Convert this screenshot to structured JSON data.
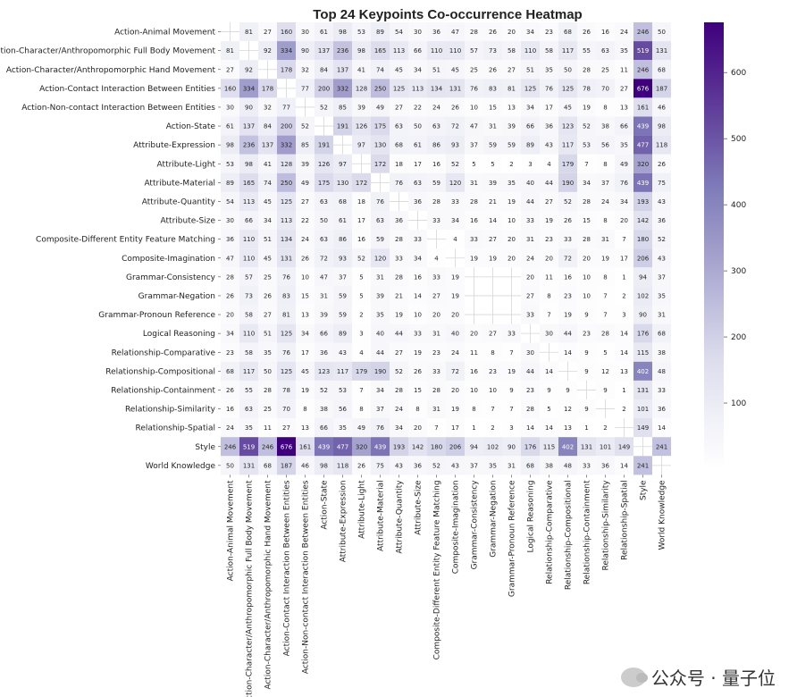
{
  "chart_data": {
    "type": "heatmap",
    "title": "Top 24 Keypoints Co-occurrence Heatmap",
    "labels": [
      "Action-Animal Movement",
      "Action-Character/Anthropomorphic Full Body Movement",
      "Action-Character/Anthropomorphic Hand Movement",
      "Action-Contact Interaction Between Entities",
      "Action-Non-contact Interaction Between Entities",
      "Action-State",
      "Attribute-Expression",
      "Attribute-Light",
      "Attribute-Material",
      "Attribute-Quantity",
      "Attribute-Size",
      "Composite-Different Entity Feature Matching",
      "Composite-Imagination",
      "Grammar-Consistency",
      "Grammar-Negation",
      "Grammar-Pronoun Reference",
      "Logical Reasoning",
      "Relationship-Comparative",
      "Relationship-Compositional",
      "Relationship-Containment",
      "Relationship-Similarity",
      "Relationship-Spatial",
      "Style",
      "World Knowledge"
    ],
    "matrix": [
      [
        null,
        81,
        27,
        160,
        30,
        61,
        98,
        53,
        89,
        54,
        30,
        36,
        47,
        28,
        26,
        20,
        34,
        23,
        68,
        26,
        16,
        24,
        246,
        50
      ],
      [
        81,
        null,
        92,
        334,
        90,
        137,
        236,
        98,
        165,
        113,
        66,
        110,
        110,
        57,
        73,
        58,
        110,
        58,
        117,
        55,
        63,
        35,
        519,
        131
      ],
      [
        27,
        92,
        null,
        178,
        32,
        84,
        137,
        41,
        74,
        45,
        34,
        51,
        45,
        25,
        26,
        27,
        51,
        35,
        50,
        28,
        25,
        11,
        246,
        68
      ],
      [
        160,
        334,
        178,
        null,
        77,
        200,
        332,
        128,
        250,
        125,
        113,
        134,
        131,
        76,
        83,
        81,
        125,
        76,
        125,
        78,
        70,
        27,
        676,
        187
      ],
      [
        30,
        90,
        32,
        77,
        null,
        52,
        85,
        39,
        49,
        27,
        22,
        24,
        26,
        10,
        15,
        13,
        34,
        17,
        45,
        19,
        8,
        13,
        161,
        46
      ],
      [
        61,
        137,
        84,
        200,
        52,
        null,
        191,
        126,
        175,
        63,
        50,
        63,
        72,
        47,
        31,
        39,
        66,
        36,
        123,
        52,
        38,
        66,
        439,
        98
      ],
      [
        98,
        236,
        137,
        332,
        85,
        191,
        null,
        97,
        130,
        68,
        61,
        86,
        93,
        37,
        59,
        59,
        89,
        43,
        117,
        53,
        56,
        35,
        477,
        118
      ],
      [
        53,
        98,
        41,
        128,
        39,
        126,
        97,
        null,
        172,
        18,
        17,
        16,
        52,
        5,
        5,
        2,
        3,
        4,
        179,
        7,
        8,
        49,
        320,
        26
      ],
      [
        89,
        165,
        74,
        250,
        49,
        175,
        130,
        172,
        null,
        76,
        63,
        59,
        120,
        31,
        39,
        35,
        40,
        44,
        190,
        34,
        37,
        76,
        439,
        75
      ],
      [
        54,
        113,
        45,
        125,
        27,
        63,
        68,
        18,
        76,
        null,
        36,
        28,
        33,
        28,
        21,
        19,
        44,
        27,
        52,
        28,
        24,
        34,
        193,
        43
      ],
      [
        30,
        66,
        34,
        113,
        22,
        50,
        61,
        17,
        63,
        36,
        null,
        33,
        34,
        16,
        14,
        10,
        33,
        19,
        26,
        15,
        8,
        20,
        142,
        36
      ],
      [
        36,
        110,
        51,
        134,
        24,
        63,
        86,
        16,
        59,
        28,
        33,
        null,
        4,
        33,
        27,
        20,
        31,
        23,
        33,
        28,
        31,
        7,
        180,
        52
      ],
      [
        47,
        110,
        45,
        131,
        26,
        72,
        93,
        52,
        120,
        33,
        34,
        4,
        null,
        19,
        19,
        20,
        24,
        20,
        72,
        20,
        19,
        17,
        206,
        43
      ],
      [
        28,
        57,
        25,
        76,
        10,
        47,
        37,
        5,
        31,
        28,
        16,
        33,
        19,
        null,
        null,
        null,
        20,
        11,
        16,
        10,
        8,
        1,
        94,
        37
      ],
      [
        26,
        73,
        26,
        83,
        15,
        31,
        59,
        5,
        39,
        21,
        14,
        27,
        19,
        null,
        null,
        null,
        27,
        8,
        23,
        10,
        7,
        2,
        102,
        35
      ],
      [
        20,
        58,
        27,
        81,
        13,
        39,
        59,
        2,
        35,
        19,
        10,
        20,
        20,
        null,
        null,
        null,
        33,
        7,
        19,
        9,
        7,
        3,
        90,
        31
      ],
      [
        34,
        110,
        51,
        125,
        34,
        66,
        89,
        3,
        40,
        44,
        33,
        31,
        40,
        20,
        27,
        33,
        null,
        30,
        44,
        23,
        28,
        14,
        176,
        68
      ],
      [
        23,
        58,
        35,
        76,
        17,
        36,
        43,
        4,
        44,
        27,
        19,
        23,
        24,
        11,
        8,
        7,
        30,
        null,
        14,
        9,
        5,
        14,
        115,
        38
      ],
      [
        68,
        117,
        50,
        125,
        45,
        123,
        117,
        179,
        190,
        52,
        26,
        33,
        72,
        16,
        23,
        19,
        44,
        14,
        null,
        9,
        12,
        13,
        402,
        48
      ],
      [
        26,
        55,
        28,
        78,
        19,
        52,
        53,
        7,
        34,
        28,
        15,
        28,
        20,
        10,
        10,
        9,
        23,
        9,
        9,
        null,
        9,
        1,
        131,
        33
      ],
      [
        16,
        63,
        25,
        70,
        8,
        38,
        56,
        8,
        37,
        24,
        8,
        31,
        19,
        8,
        7,
        7,
        28,
        5,
        12,
        9,
        null,
        2,
        101,
        36
      ],
      [
        24,
        35,
        11,
        27,
        13,
        66,
        35,
        49,
        76,
        34,
        20,
        7,
        17,
        1,
        2,
        3,
        14,
        14,
        13,
        1,
        2,
        null,
        149,
        14
      ],
      [
        246,
        519,
        246,
        676,
        161,
        439,
        477,
        320,
        439,
        193,
        142,
        180,
        206,
        94,
        102,
        90,
        176,
        115,
        402,
        131,
        101,
        149,
        null,
        241
      ],
      [
        50,
        131,
        68,
        187,
        46,
        98,
        118,
        26,
        75,
        43,
        36,
        52,
        43,
        37,
        35,
        31,
        68,
        38,
        48,
        33,
        36,
        14,
        241,
        null
      ]
    ],
    "colorbar": {
      "ticks": [
        100,
        200,
        300,
        400,
        500,
        600
      ],
      "range": [
        0,
        676
      ],
      "colors": [
        "#ffffff",
        "#efeff7",
        "#dcdced",
        "#bdbcdc",
        "#9e9bc9",
        "#807dba",
        "#6a51a3",
        "#54278f",
        "#3f007d"
      ]
    },
    "text_colors": {
      "dark": "#262626",
      "light": "#ffffff"
    }
  },
  "watermark": {
    "icon": "wechat-icon",
    "text": "公众号 · 量子位"
  }
}
